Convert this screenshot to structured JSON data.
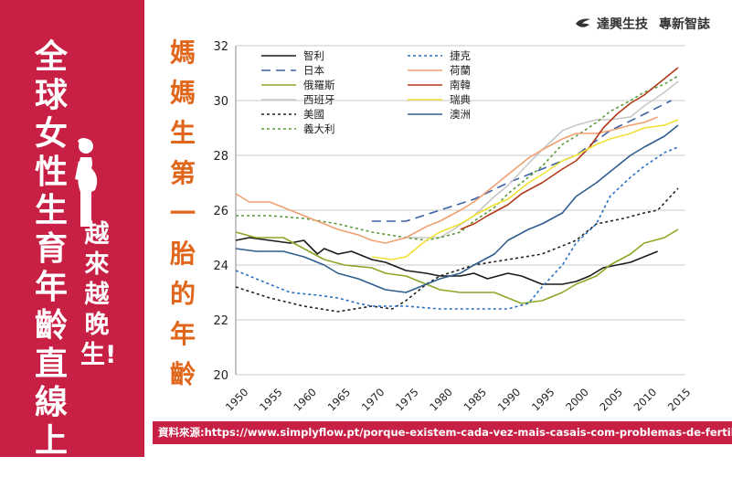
{
  "side": {
    "title": "全球女性生育年齡直線上升",
    "subtitle": "越來越晚生!"
  },
  "vertical_title": "媽媽生第一胎的年齡",
  "brand": {
    "name": "達興生技",
    "tagline": "專新智誌"
  },
  "source": "資料來源:https://www.simplyflow.pt/porque-existem-cada-vez-mais-casais-com-problemas-de-fertilidade/",
  "colors": {
    "side_bg": "#c81f44",
    "title_orange": "#e0661b"
  },
  "chart_data": {
    "type": "line",
    "xlim": [
      1950,
      2015
    ],
    "ylim": [
      20,
      32
    ],
    "x_ticks": [
      "1950",
      "1955",
      "1960",
      "1965",
      "1970",
      "1975",
      "1980",
      "1985",
      "1990",
      "1995",
      "2000",
      "2005",
      "2010",
      "2015"
    ],
    "y_ticks": [
      "20",
      "22",
      "24",
      "26",
      "28",
      "30",
      "32"
    ],
    "grid": "horizontal",
    "legend": "top-left",
    "series": [
      {
        "name": "智利",
        "color": "#1a1a1a",
        "dash": "solid",
        "points": [
          [
            1950,
            24.9
          ],
          [
            1952,
            25.0
          ],
          [
            1955,
            24.9
          ],
          [
            1958,
            24.8
          ],
          [
            1960,
            24.9
          ],
          [
            1962,
            24.4
          ],
          [
            1963,
            24.6
          ],
          [
            1965,
            24.4
          ],
          [
            1967,
            24.5
          ],
          [
            1970,
            24.2
          ],
          [
            1972,
            24.1
          ],
          [
            1975,
            23.8
          ],
          [
            1978,
            23.7
          ],
          [
            1980,
            23.6
          ],
          [
            1983,
            23.6
          ],
          [
            1985,
            23.7
          ],
          [
            1987,
            23.5
          ],
          [
            1990,
            23.7
          ],
          [
            1992,
            23.6
          ],
          [
            1995,
            23.3
          ],
          [
            1998,
            23.3
          ],
          [
            2000,
            23.4
          ],
          [
            2002,
            23.6
          ],
          [
            2004,
            23.9
          ],
          [
            2006,
            24.0
          ],
          [
            2008,
            24.1
          ],
          [
            2010,
            24.3
          ],
          [
            2012,
            24.5
          ]
        ]
      },
      {
        "name": "日本",
        "color": "#3a62a6",
        "dash": "10,6",
        "points": [
          [
            1970,
            25.6
          ],
          [
            1975,
            25.6
          ],
          [
            1980,
            26.0
          ],
          [
            1985,
            26.4
          ],
          [
            1990,
            27.0
          ],
          [
            1995,
            27.5
          ],
          [
            2000,
            28.0
          ],
          [
            2005,
            28.9
          ],
          [
            2010,
            29.5
          ],
          [
            2014,
            30.0
          ]
        ]
      },
      {
        "name": "俄羅斯",
        "color": "#8aa826",
        "dash": "solid",
        "points": [
          [
            1950,
            25.2
          ],
          [
            1953,
            25.0
          ],
          [
            1957,
            25.0
          ],
          [
            1960,
            24.6
          ],
          [
            1963,
            24.2
          ],
          [
            1966,
            24.0
          ],
          [
            1970,
            23.9
          ],
          [
            1972,
            23.7
          ],
          [
            1975,
            23.6
          ],
          [
            1978,
            23.3
          ],
          [
            1980,
            23.1
          ],
          [
            1983,
            23.0
          ],
          [
            1985,
            23.0
          ],
          [
            1988,
            23.0
          ],
          [
            1990,
            22.8
          ],
          [
            1992,
            22.6
          ],
          [
            1995,
            22.7
          ],
          [
            1998,
            23.0
          ],
          [
            2000,
            23.3
          ],
          [
            2003,
            23.6
          ],
          [
            2005,
            24.0
          ],
          [
            2008,
            24.4
          ],
          [
            2010,
            24.8
          ],
          [
            2013,
            25.0
          ],
          [
            2015,
            25.3
          ]
        ]
      },
      {
        "name": "西班牙",
        "color": "#c8c8c8",
        "dash": "solid",
        "points": [
          [
            1975,
            25.0
          ],
          [
            1978,
            25.0
          ],
          [
            1980,
            25.0
          ],
          [
            1982,
            25.3
          ],
          [
            1985,
            25.8
          ],
          [
            1988,
            26.5
          ],
          [
            1990,
            26.9
          ],
          [
            1993,
            27.7
          ],
          [
            1995,
            28.2
          ],
          [
            1998,
            28.9
          ],
          [
            2000,
            29.1
          ],
          [
            2003,
            29.3
          ],
          [
            2005,
            29.3
          ],
          [
            2008,
            29.4
          ],
          [
            2010,
            29.8
          ],
          [
            2013,
            30.3
          ],
          [
            2015,
            30.7
          ]
        ]
      },
      {
        "name": "美國",
        "color": "#222222",
        "dash": "3,3",
        "points": [
          [
            1950,
            23.2
          ],
          [
            1955,
            22.8
          ],
          [
            1960,
            22.5
          ],
          [
            1965,
            22.3
          ],
          [
            1970,
            22.5
          ],
          [
            1973,
            22.4
          ],
          [
            1975,
            22.7
          ],
          [
            1978,
            23.3
          ],
          [
            1980,
            23.6
          ],
          [
            1985,
            24.0
          ],
          [
            1990,
            24.2
          ],
          [
            1995,
            24.4
          ],
          [
            2000,
            24.9
          ],
          [
            2003,
            25.5
          ],
          [
            2005,
            25.6
          ],
          [
            2007,
            25.7
          ],
          [
            2010,
            25.9
          ],
          [
            2012,
            26.0
          ],
          [
            2015,
            26.8
          ]
        ]
      },
      {
        "name": "義大利",
        "color": "#5a9a3c",
        "dash": "3,3",
        "points": [
          [
            1950,
            25.8
          ],
          [
            1955,
            25.8
          ],
          [
            1960,
            25.7
          ],
          [
            1965,
            25.5
          ],
          [
            1970,
            25.2
          ],
          [
            1975,
            25.0
          ],
          [
            1978,
            24.9
          ],
          [
            1980,
            25.0
          ],
          [
            1983,
            25.2
          ],
          [
            1985,
            25.6
          ],
          [
            1988,
            26.1
          ],
          [
            1990,
            26.6
          ],
          [
            1993,
            27.2
          ],
          [
            1995,
            27.6
          ],
          [
            1998,
            28.4
          ],
          [
            2000,
            28.7
          ],
          [
            2003,
            29.2
          ],
          [
            2005,
            29.6
          ],
          [
            2008,
            30.0
          ],
          [
            2010,
            30.3
          ],
          [
            2013,
            30.6
          ],
          [
            2015,
            30.9
          ]
        ]
      },
      {
        "name": "捷克",
        "color": "#2a6fc1",
        "dash": "3,3",
        "points": [
          [
            1950,
            23.8
          ],
          [
            1955,
            23.3
          ],
          [
            1958,
            23.0
          ],
          [
            1962,
            22.9
          ],
          [
            1965,
            22.8
          ],
          [
            1968,
            22.6
          ],
          [
            1970,
            22.5
          ],
          [
            1975,
            22.5
          ],
          [
            1980,
            22.4
          ],
          [
            1985,
            22.4
          ],
          [
            1990,
            22.4
          ],
          [
            1993,
            22.6
          ],
          [
            1995,
            23.2
          ],
          [
            1998,
            24.0
          ],
          [
            2000,
            24.8
          ],
          [
            2003,
            25.5
          ],
          [
            2005,
            26.5
          ],
          [
            2008,
            27.2
          ],
          [
            2010,
            27.6
          ],
          [
            2013,
            28.1
          ],
          [
            2015,
            28.3
          ]
        ]
      },
      {
        "name": "荷蘭",
        "color": "#f0a070",
        "dash": "solid",
        "points": [
          [
            1950,
            26.6
          ],
          [
            1952,
            26.3
          ],
          [
            1955,
            26.3
          ],
          [
            1958,
            26.0
          ],
          [
            1960,
            25.8
          ],
          [
            1963,
            25.5
          ],
          [
            1965,
            25.3
          ],
          [
            1968,
            25.1
          ],
          [
            1970,
            24.9
          ],
          [
            1972,
            24.8
          ],
          [
            1975,
            25.0
          ],
          [
            1978,
            25.4
          ],
          [
            1980,
            25.6
          ],
          [
            1983,
            26.0
          ],
          [
            1985,
            26.3
          ],
          [
            1988,
            26.9
          ],
          [
            1990,
            27.3
          ],
          [
            1993,
            27.9
          ],
          [
            1995,
            28.2
          ],
          [
            1998,
            28.6
          ],
          [
            2000,
            28.8
          ],
          [
            2003,
            28.8
          ],
          [
            2005,
            28.9
          ],
          [
            2008,
            29.1
          ],
          [
            2010,
            29.2
          ],
          [
            2012,
            29.4
          ]
        ]
      },
      {
        "name": "南韓",
        "color": "#b23a1a",
        "dash": "solid",
        "points": [
          [
            1983,
            25.3
          ],
          [
            1985,
            25.5
          ],
          [
            1987,
            25.8
          ],
          [
            1990,
            26.2
          ],
          [
            1992,
            26.6
          ],
          [
            1995,
            27.0
          ],
          [
            1998,
            27.5
          ],
          [
            2000,
            27.8
          ],
          [
            2002,
            28.3
          ],
          [
            2004,
            29.0
          ],
          [
            2006,
            29.5
          ],
          [
            2008,
            29.9
          ],
          [
            2010,
            30.2
          ],
          [
            2012,
            30.6
          ],
          [
            2015,
            31.2
          ]
        ]
      },
      {
        "name": "瑞典",
        "color": "#f2e034",
        "dash": "solid",
        "points": [
          [
            1970,
            24.3
          ],
          [
            1973,
            24.2
          ],
          [
            1975,
            24.3
          ],
          [
            1978,
            24.9
          ],
          [
            1980,
            25.2
          ],
          [
            1983,
            25.5
          ],
          [
            1985,
            25.8
          ],
          [
            1988,
            26.2
          ],
          [
            1990,
            26.4
          ],
          [
            1993,
            27.0
          ],
          [
            1995,
            27.3
          ],
          [
            1998,
            27.8
          ],
          [
            2000,
            28.0
          ],
          [
            2003,
            28.4
          ],
          [
            2005,
            28.6
          ],
          [
            2008,
            28.8
          ],
          [
            2010,
            29.0
          ],
          [
            2013,
            29.1
          ],
          [
            2015,
            29.3
          ]
        ]
      },
      {
        "name": "澳洲",
        "color": "#2e5d8e",
        "dash": "solid",
        "points": [
          [
            1950,
            24.6
          ],
          [
            1953,
            24.5
          ],
          [
            1957,
            24.5
          ],
          [
            1960,
            24.3
          ],
          [
            1963,
            24.0
          ],
          [
            1965,
            23.7
          ],
          [
            1968,
            23.5
          ],
          [
            1970,
            23.3
          ],
          [
            1972,
            23.1
          ],
          [
            1975,
            23.0
          ],
          [
            1978,
            23.3
          ],
          [
            1980,
            23.5
          ],
          [
            1983,
            23.7
          ],
          [
            1985,
            24.0
          ],
          [
            1988,
            24.4
          ],
          [
            1990,
            24.9
          ],
          [
            1993,
            25.3
          ],
          [
            1995,
            25.5
          ],
          [
            1998,
            25.9
          ],
          [
            2000,
            26.5
          ],
          [
            2003,
            27.0
          ],
          [
            2005,
            27.4
          ],
          [
            2008,
            28.0
          ],
          [
            2010,
            28.3
          ],
          [
            2013,
            28.7
          ],
          [
            2015,
            29.1
          ]
        ]
      }
    ]
  }
}
